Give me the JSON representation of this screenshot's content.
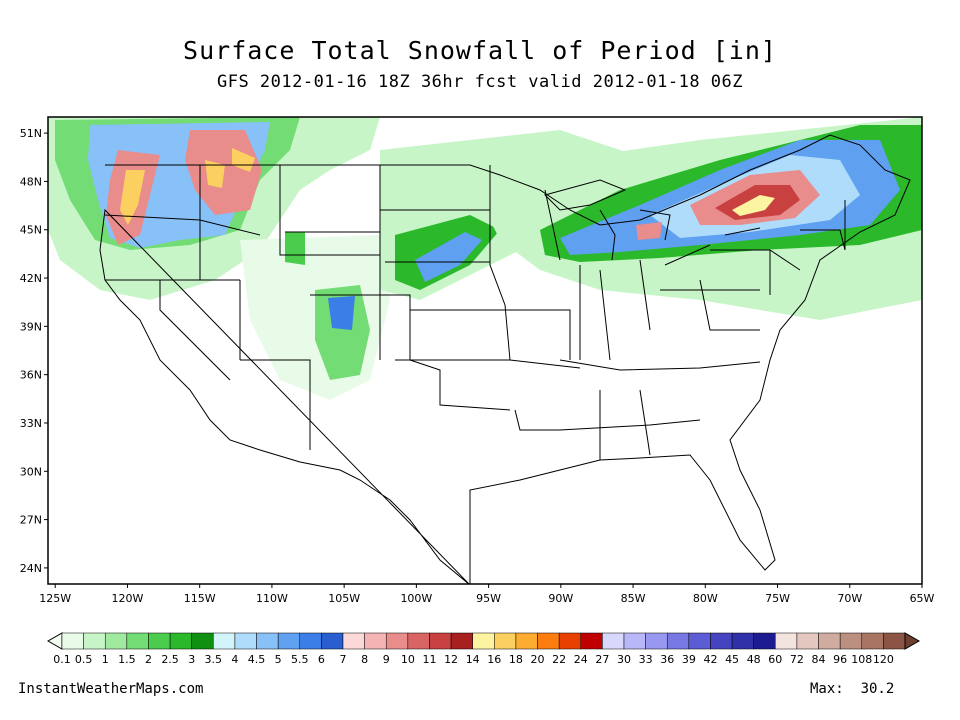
{
  "header": {
    "title": "Surface Total Snowfall of Period [in]",
    "subtitle": "GFS 2012-01-16 18Z 36hr fcst valid 2012-01-18 06Z"
  },
  "map": {
    "lat_labels": [
      "51N",
      "48N",
      "45N",
      "42N",
      "39N",
      "36N",
      "33N",
      "30N",
      "27N",
      "24N"
    ],
    "lon_labels": [
      "125W",
      "120W",
      "115W",
      "110W",
      "105W",
      "100W",
      "95W",
      "90W",
      "85W",
      "80W",
      "75W",
      "70W",
      "65W"
    ],
    "lat_values": [
      51,
      48,
      45,
      42,
      39,
      36,
      33,
      30,
      27,
      24
    ],
    "lon_values": [
      -125,
      -120,
      -115,
      -110,
      -105,
      -100,
      -95,
      -90,
      -85,
      -80,
      -75,
      -70,
      -65
    ],
    "extent": {
      "lon_min": -125.5,
      "lon_max": -65,
      "lat_min": 23,
      "lat_max": 52
    }
  },
  "colorbar": {
    "labels": [
      "0.1",
      "0.5",
      "1",
      "1.5",
      "2",
      "2.5",
      "3",
      "3.5",
      "4",
      "4.5",
      "5",
      "5.5",
      "6",
      "7",
      "8",
      "9",
      "10",
      "11",
      "12",
      "14",
      "16",
      "18",
      "20",
      "22",
      "24",
      "27",
      "30",
      "33",
      "36",
      "39",
      "42",
      "45",
      "48",
      "60",
      "72",
      "84",
      "96",
      "108",
      "120"
    ],
    "colors": [
      "#e8fbe8",
      "#c8f5c8",
      "#9fea9f",
      "#74dc74",
      "#4ccc4c",
      "#2bb82b",
      "#109010",
      "#d4f4fc",
      "#b0dcfc",
      "#88c0f8",
      "#5fa0f0",
      "#3c7ee8",
      "#285ed0",
      "#fcd8d8",
      "#f4b4b4",
      "#e88c8c",
      "#d86464",
      "#c84040",
      "#a82020",
      "#fcf4a0",
      "#fcd060",
      "#fcac30",
      "#fc7c10",
      "#e84000",
      "#c00000",
      "#d8d8fc",
      "#b8b8f8",
      "#9898f0",
      "#7878e4",
      "#5c5cd4",
      "#4444c0",
      "#3030a8",
      "#1c1c90",
      "#f4e4e0",
      "#e4c8c0",
      "#d0aca0",
      "#bc9080",
      "#a87464",
      "#8c5444"
    ]
  },
  "footer": {
    "source": "InstantWeatherMaps.com",
    "max_label": "Max:",
    "max_value": "30.2"
  }
}
